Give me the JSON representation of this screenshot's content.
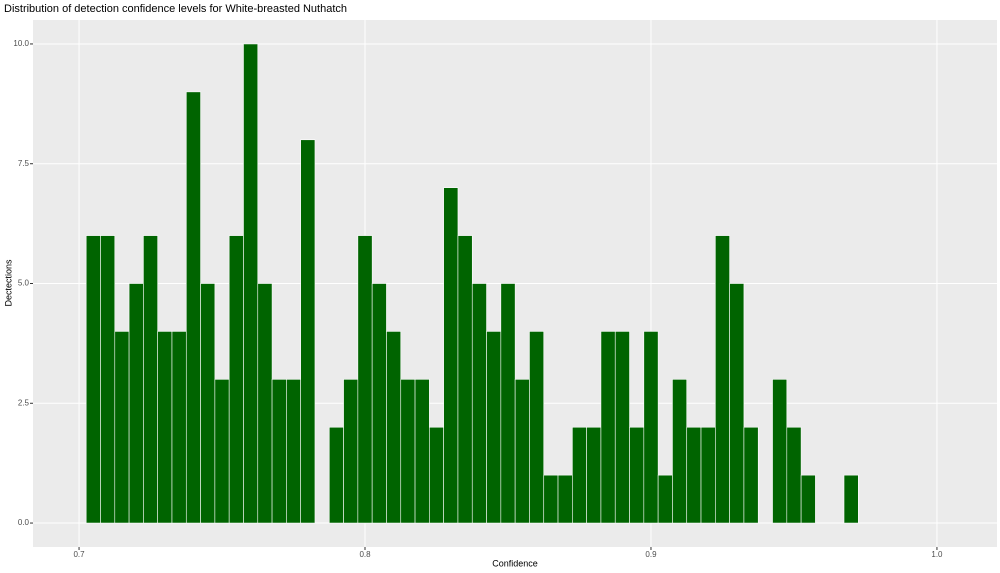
{
  "chart_data": {
    "type": "histogram",
    "title": "Distribution of detection confidence levels for White-breasted Nuthatch",
    "x_label": "Confidence",
    "y_label": "Dectections",
    "bins": [
      0.7025,
      0.7075,
      0.7125,
      0.7175,
      0.7225,
      0.7275,
      0.7325,
      0.7375,
      0.7425,
      0.7475,
      0.7525,
      0.7575,
      0.7625,
      0.7675,
      0.7725,
      0.7775,
      0.7825,
      0.7875,
      0.7925,
      0.7975,
      0.8025,
      0.8075,
      0.8125,
      0.8175,
      0.8225,
      0.8275,
      0.8325,
      0.8375,
      0.8425,
      0.8475,
      0.8525,
      0.8575,
      0.8625,
      0.8675,
      0.8725,
      0.8775,
      0.8825,
      0.8875,
      0.8925,
      0.8975,
      0.9025,
      0.9075,
      0.9125,
      0.9175,
      0.9225,
      0.9275,
      0.9325,
      0.9375,
      0.9425,
      0.9475,
      0.9525,
      0.9575,
      0.9625,
      0.9675,
      0.9725
    ],
    "values": [
      6,
      6,
      4,
      5,
      6,
      4,
      4,
      9,
      5,
      3,
      6,
      10,
      5,
      3,
      3,
      8,
      0,
      2,
      3,
      6,
      5,
      4,
      3,
      3,
      2,
      7,
      6,
      5,
      4,
      5,
      3,
      4,
      1,
      1,
      2,
      2,
      4,
      4,
      2,
      4,
      1,
      3,
      2,
      2,
      6,
      5,
      2,
      0,
      3,
      2,
      1,
      0,
      0,
      1
    ],
    "color": "#006400",
    "xlim": [
      0.6839,
      1.021
    ],
    "ylim": [
      -0.5,
      10.5
    ],
    "xticks": [
      0.7,
      0.8,
      0.9,
      {
        "value": 1.0,
        "label": "1.0"
      }
    ],
    "yticks": [
      {
        "value": 0,
        "label": "0.0"
      },
      2.5,
      {
        "value": 5,
        "label": "5.0"
      },
      7.5,
      {
        "value": 10,
        "label": "10.0"
      }
    ],
    "grid": true
  }
}
